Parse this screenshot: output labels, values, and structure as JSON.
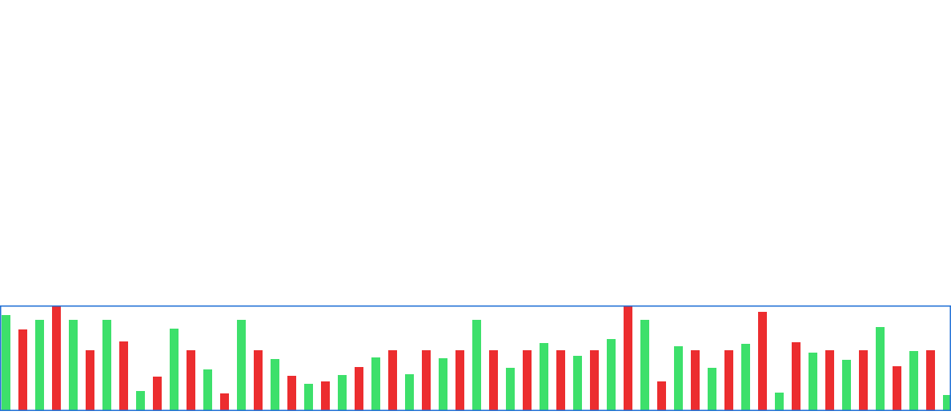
{
  "chart_data": {
    "type": "bar",
    "values": [
      119,
      101,
      113,
      130,
      113,
      75,
      113,
      86,
      24,
      42,
      102,
      75,
      51,
      21,
      113,
      75,
      64,
      43,
      33,
      36,
      44,
      54,
      66,
      75,
      45,
      75,
      65,
      75,
      113,
      75,
      53,
      75,
      84,
      75,
      68,
      75,
      89,
      130,
      113,
      36,
      80,
      75,
      53,
      75,
      83,
      123,
      22,
      85,
      72,
      75,
      63,
      75,
      104,
      55,
      74,
      75,
      19
    ],
    "colors": [
      "#3de06b",
      "#ec2d2f",
      "#3de06b",
      "#ec2d2f",
      "#3de06b",
      "#ec2d2f",
      "#3de06b",
      "#ec2d2f",
      "#3de06b",
      "#ec2d2f",
      "#3de06b",
      "#ec2d2f",
      "#3de06b",
      "#ec2d2f",
      "#3de06b",
      "#ec2d2f",
      "#3de06b",
      "#ec2d2f",
      "#3de06b",
      "#ec2d2f",
      "#3de06b",
      "#ec2d2f",
      "#3de06b",
      "#ec2d2f",
      "#3de06b",
      "#ec2d2f",
      "#3de06b",
      "#ec2d2f",
      "#3de06b",
      "#ec2d2f",
      "#3de06b",
      "#ec2d2f",
      "#3de06b",
      "#ec2d2f",
      "#3de06b",
      "#ec2d2f",
      "#3de06b",
      "#ec2d2f",
      "#3de06b",
      "#ec2d2f",
      "#3de06b",
      "#ec2d2f",
      "#3de06b",
      "#ec2d2f",
      "#3de06b",
      "#ec2d2f",
      "#3de06b",
      "#ec2d2f",
      "#3de06b",
      "#ec2d2f",
      "#3de06b",
      "#ec2d2f",
      "#3de06b",
      "#ec2d2f",
      "#3de06b",
      "#ec2d2f",
      "#3de06b"
    ],
    "ylim": [
      0,
      130
    ],
    "frame_color": "#1f6fd6"
  }
}
